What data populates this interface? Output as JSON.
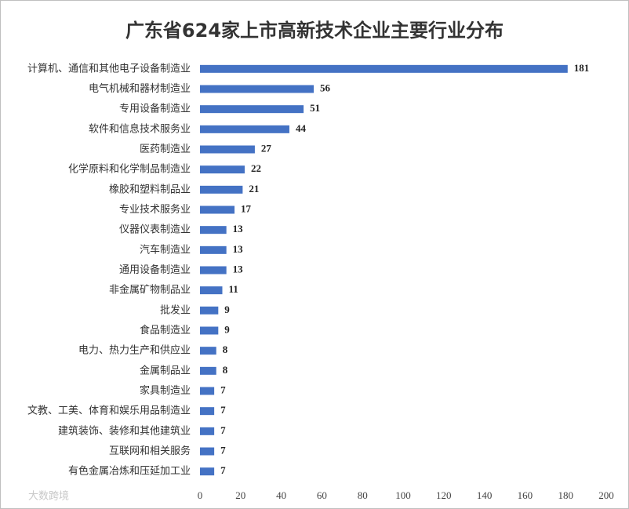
{
  "chart_data": {
    "type": "hbar",
    "title": "广东省624家上市高新技术企业主要行业分布",
    "categories": [
      "计算机、通信和其他电子设备制造业",
      "电气机械和器材制造业",
      "专用设备制造业",
      "软件和信息技术服务业",
      "医药制造业",
      "化学原料和化学制品制造业",
      "橡胶和塑料制品业",
      "专业技术服务业",
      "仪器仪表制造业",
      "汽车制造业",
      "通用设备制造业",
      "非金属矿物制品业",
      "批发业",
      "食品制造业",
      "电力、热力生产和供应业",
      "金属制品业",
      "家具制造业",
      "文教、工美、体育和娱乐用品制造业",
      "建筑装饰、装修和其他建筑业",
      "互联网和相关服务",
      "有色金属冶炼和压延加工业"
    ],
    "values": [
      181,
      56,
      51,
      44,
      27,
      22,
      21,
      17,
      13,
      13,
      13,
      11,
      9,
      9,
      8,
      8,
      7,
      7,
      7,
      7,
      7
    ],
    "color": "#4472c4",
    "xlim": [
      0,
      200
    ],
    "xticks": [
      0,
      20,
      40,
      60,
      80,
      100,
      120,
      140,
      160,
      180,
      200
    ],
    "grid": false,
    "watermark": "大数跨境"
  }
}
